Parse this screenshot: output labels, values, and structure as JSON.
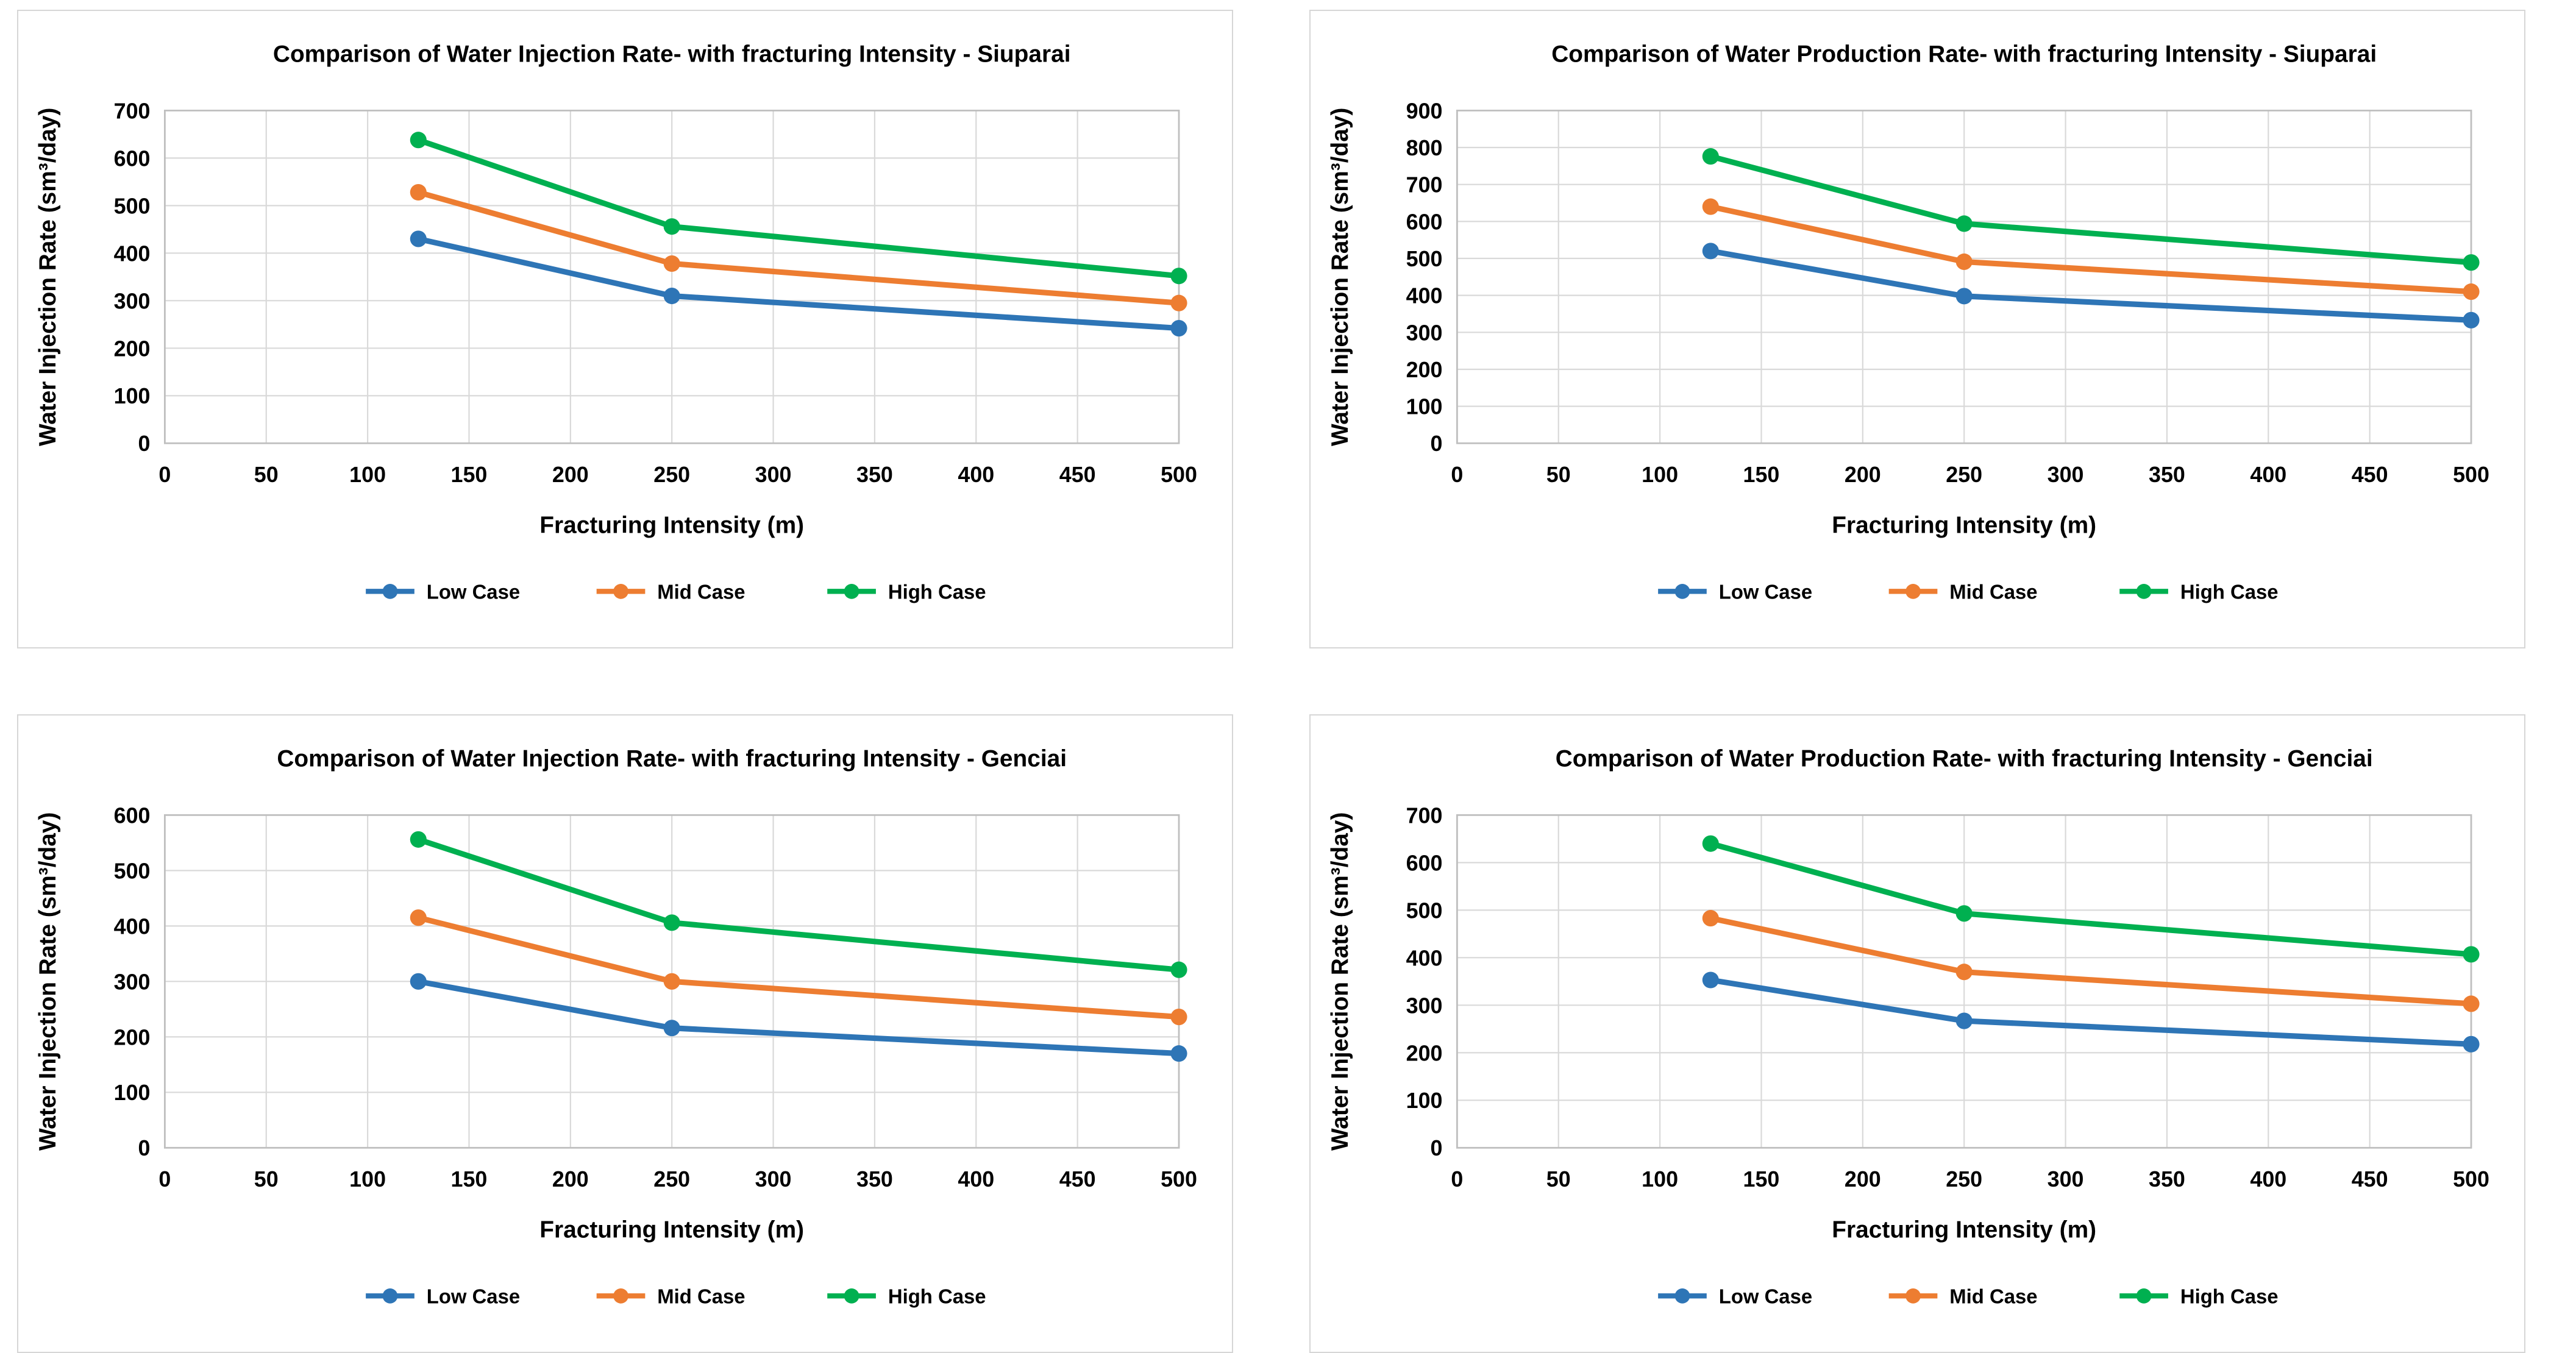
{
  "page": {
    "background": "#ffffff",
    "panel_border_color": "#d6d6d6",
    "gridline_color": "#d9d9d9",
    "axis_border_color": "#bfbfbf",
    "text_color": "#000000"
  },
  "chart_data": [
    {
      "type": "line",
      "title": "Comparison of Water Injection Rate- with fracturing Intensity - Siuparai",
      "xlabel": "Fracturing Intensity (m)",
      "ylabel": "Water Injection Rate (sm³/day)",
      "x": [
        125,
        250,
        500
      ],
      "xlim": [
        0,
        500
      ],
      "xtick_step": 50,
      "ylim": [
        0,
        700
      ],
      "ytick_step": 100,
      "grid": true,
      "legend_position": "bottom",
      "series": [
        {
          "name": "Low Case",
          "color": "#2E75B6",
          "values": [
            430,
            310,
            242
          ]
        },
        {
          "name": "Mid Case",
          "color": "#ED7D31",
          "values": [
            528,
            378,
            295
          ]
        },
        {
          "name": "High Case",
          "color": "#00B050",
          "values": [
            638,
            456,
            352
          ]
        }
      ]
    },
    {
      "type": "line",
      "title": "Comparison of Water Production Rate- with fracturing Intensity - Siuparai",
      "xlabel": "Fracturing Intensity (m)",
      "ylabel": "Water Injection Rate (sm³/day)",
      "x": [
        125,
        250,
        500
      ],
      "xlim": [
        0,
        500
      ],
      "xtick_step": 50,
      "ylim": [
        0,
        900
      ],
      "ytick_step": 100,
      "grid": true,
      "legend_position": "bottom",
      "series": [
        {
          "name": "Low Case",
          "color": "#2E75B6",
          "values": [
            520,
            398,
            333
          ]
        },
        {
          "name": "Mid Case",
          "color": "#ED7D31",
          "values": [
            640,
            491,
            410
          ]
        },
        {
          "name": "High Case",
          "color": "#00B050",
          "values": [
            776,
            594,
            489
          ]
        }
      ]
    },
    {
      "type": "line",
      "title": "Comparison of Water Injection Rate- with fracturing Intensity - Genciai",
      "xlabel": "Fracturing Intensity (m)",
      "ylabel": "Water Injection Rate (sm³/day)",
      "x": [
        125,
        250,
        500
      ],
      "xlim": [
        0,
        500
      ],
      "xtick_step": 50,
      "ylim": [
        0,
        600
      ],
      "ytick_step": 100,
      "grid": true,
      "legend_position": "bottom",
      "series": [
        {
          "name": "Low Case",
          "color": "#2E75B6",
          "values": [
            300,
            216,
            170
          ]
        },
        {
          "name": "Mid Case",
          "color": "#ED7D31",
          "values": [
            415,
            300,
            236
          ]
        },
        {
          "name": "High Case",
          "color": "#00B050",
          "values": [
            556,
            406,
            321
          ]
        }
      ]
    },
    {
      "type": "line",
      "title": "Comparison of Water Production Rate- with fracturing Intensity - Genciai",
      "xlabel": "Fracturing Intensity (m)",
      "ylabel": "Water Injection Rate (sm³/day)",
      "x": [
        125,
        250,
        500
      ],
      "xlim": [
        0,
        500
      ],
      "xtick_step": 50,
      "ylim": [
        0,
        700
      ],
      "ytick_step": 100,
      "grid": true,
      "legend_position": "bottom",
      "series": [
        {
          "name": "Low Case",
          "color": "#2E75B6",
          "values": [
            353,
            267,
            218
          ]
        },
        {
          "name": "Mid Case",
          "color": "#ED7D31",
          "values": [
            483,
            370,
            303
          ]
        },
        {
          "name": "High Case",
          "color": "#00B050",
          "values": [
            640,
            493,
            407
          ]
        }
      ]
    }
  ]
}
